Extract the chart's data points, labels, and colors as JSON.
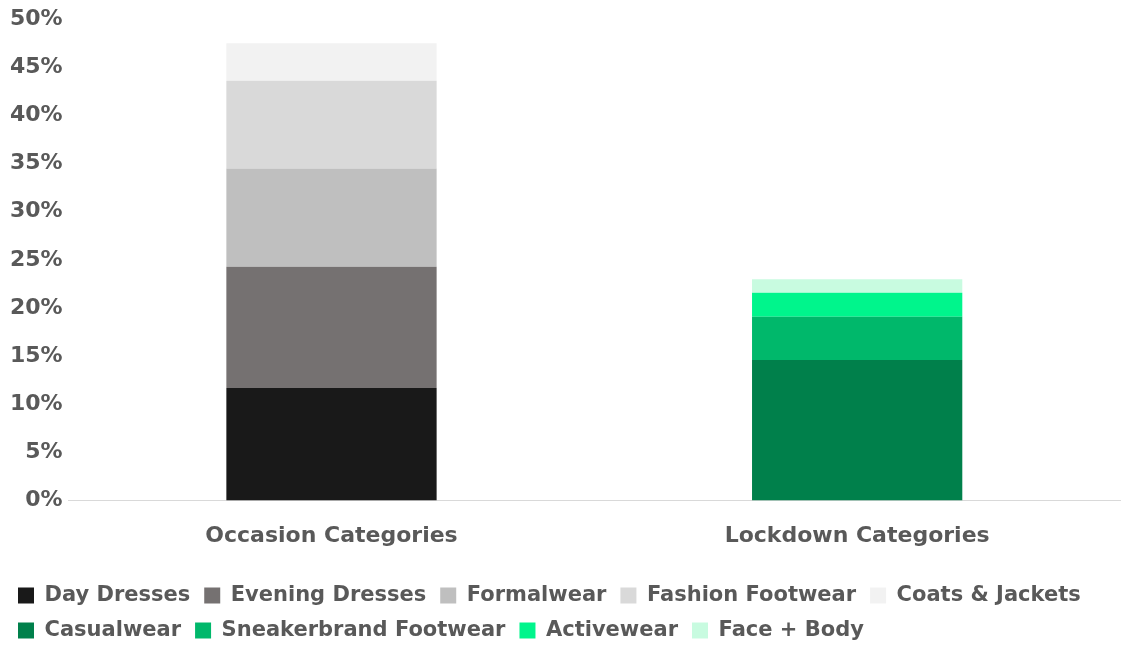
{
  "chart_data": {
    "type": "bar",
    "stacked": true,
    "categories": [
      "Occasion Categories",
      "Lockdown Categories"
    ],
    "series": [
      {
        "name": "Day Dresses",
        "color": "#191919",
        "values": [
          11.7,
          null
        ]
      },
      {
        "name": "Evening Dresses",
        "color": "#757171",
        "values": [
          12.6,
          null
        ]
      },
      {
        "name": "Formalwear",
        "color": "#bfbfbf",
        "values": [
          10.2,
          null
        ]
      },
      {
        "name": "Fashion Footwear",
        "color": "#d9d9d9",
        "values": [
          9.1,
          null
        ]
      },
      {
        "name": "Coats & Jackets",
        "color": "#f2f2f2",
        "values": [
          3.9,
          null
        ]
      },
      {
        "name": "Casualwear",
        "color": "#00804b",
        "values": [
          null,
          14.6
        ]
      },
      {
        "name": "Sneakerbrand Footwear",
        "color": "#00b86b",
        "values": [
          null,
          4.5
        ]
      },
      {
        "name": "Activewear",
        "color": "#00f58c",
        "values": [
          null,
          2.5
        ]
      },
      {
        "name": "Face + Body",
        "color": "#c8fbe0",
        "values": [
          null,
          1.4
        ]
      }
    ],
    "ylim": [
      0,
      50
    ],
    "yticks": [
      {
        "value": 0,
        "label": "0%"
      },
      {
        "value": 5,
        "label": "5%"
      },
      {
        "value": 10,
        "label": "10%"
      },
      {
        "value": 15,
        "label": "15%"
      },
      {
        "value": 20,
        "label": "20%"
      },
      {
        "value": 25,
        "label": "25%"
      },
      {
        "value": 30,
        "label": "30%"
      },
      {
        "value": 35,
        "label": "35%"
      },
      {
        "value": 40,
        "label": "40%"
      },
      {
        "value": 45,
        "label": "45%"
      },
      {
        "value": 50,
        "label": "50%"
      }
    ],
    "grid": false,
    "legend": "bottom"
  }
}
